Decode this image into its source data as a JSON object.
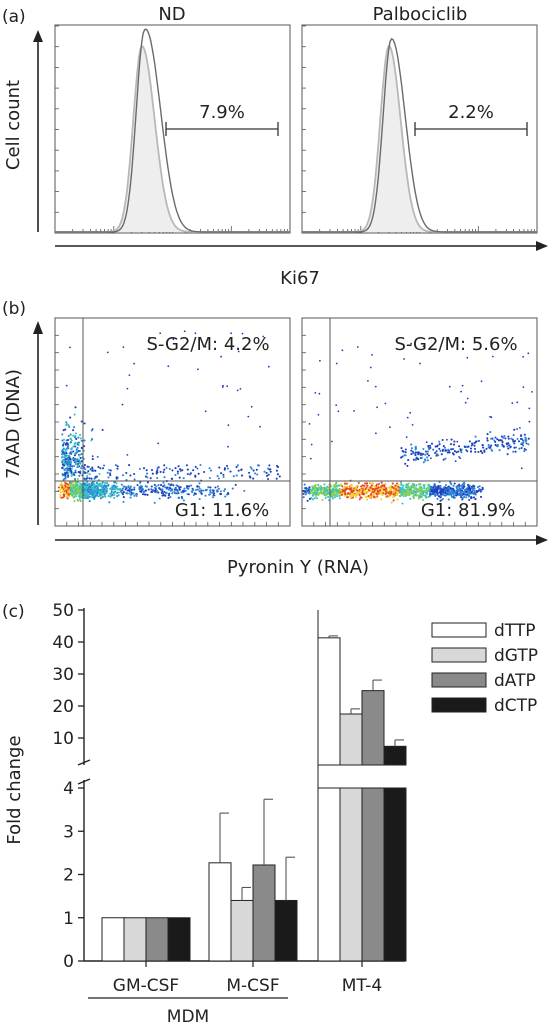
{
  "panel_labels": [
    "(a)",
    "(b)",
    "(c)"
  ],
  "chart_data": [
    {
      "panel": "(a)",
      "type": "histogram",
      "ylabel": "Cell count",
      "xlabel": "Ki67",
      "x_scale": "log",
      "subplots": [
        {
          "title": "ND",
          "gate_percent": "7.9%"
        },
        {
          "title": "Palbociclib",
          "gate_percent": "2.2%"
        }
      ],
      "colors": {
        "overlay": "#b8b8b8",
        "sample": "#6a6a6a",
        "fill": "#eeeeee"
      }
    },
    {
      "panel": "(b)",
      "type": "scatter",
      "ylabel": "7AAD (DNA)",
      "xlabel": "Pyronin Y (RNA)",
      "subplots": [
        {
          "gate_top": "S-G2/M: 4.2%",
          "gate_bottom": "G1: 11.6%"
        },
        {
          "gate_top": "S-G2/M: 5.6%",
          "gate_bottom": "G1: 81.9%"
        }
      ],
      "density_colors": [
        "#1f3fbf",
        "#2f86d6",
        "#36c3c3",
        "#8fd14a",
        "#f2d22b",
        "#e9422a"
      ]
    },
    {
      "panel": "(c)",
      "type": "bar",
      "ylabel": "Fold change",
      "y_axis_broken": true,
      "yticks_lower": [
        0,
        1,
        2,
        3,
        4
      ],
      "yticks_upper": [
        10,
        20,
        30,
        40,
        50
      ],
      "categories": [
        "GM-CSF",
        "M-CSF",
        "MT-4"
      ],
      "group_label": "MDM",
      "group_members": [
        "GM-CSF",
        "M-CSF"
      ],
      "series": [
        {
          "name": "dTTP",
          "color": "#ffffff",
          "values": [
            1.0,
            2.27,
            41.3
          ],
          "errors": [
            0,
            1.15,
            0.6
          ]
        },
        {
          "name": "dGTP",
          "color": "#d8d8d8",
          "values": [
            1.0,
            1.4,
            17.5
          ],
          "errors": [
            0,
            0.3,
            1.6
          ]
        },
        {
          "name": "dATP",
          "color": "#8a8a8a",
          "values": [
            1.0,
            2.22,
            24.8
          ],
          "errors": [
            0,
            1.52,
            3.3
          ]
        },
        {
          "name": "dCTP",
          "color": "#1a1a1a",
          "values": [
            1.0,
            1.4,
            7.4
          ],
          "errors": [
            0,
            1.0,
            2.0
          ]
        }
      ]
    }
  ]
}
